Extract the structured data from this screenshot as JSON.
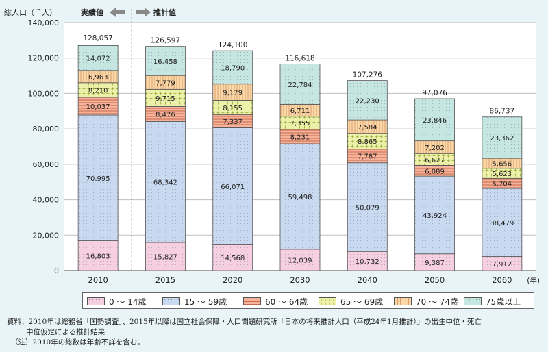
{
  "header": {
    "y_unit_label": "総人口（千人）",
    "actual_label": "実績値",
    "projected_label": "推計値"
  },
  "chart_data": {
    "type": "bar",
    "stacked": true,
    "categories": [
      "2010",
      "2015",
      "2020",
      "2030",
      "2040",
      "2050",
      "2060"
    ],
    "x_unit": "(年)",
    "ylabel": "総人口（千人）",
    "ylim": [
      0,
      140000
    ],
    "yticks": [
      "0",
      "20,000",
      "40,000",
      "60,000",
      "80,000",
      "100,000",
      "120,000",
      "140,000"
    ],
    "ytick_values": [
      0,
      20000,
      40000,
      60000,
      80000,
      100000,
      120000,
      140000
    ],
    "totals": [
      128057,
      126597,
      124100,
      116618,
      107276,
      97076,
      86737
    ],
    "totals_labels": [
      "128,057",
      "126,597",
      "124,100",
      "116,618",
      "107,276",
      "97,076",
      "86,737"
    ],
    "series": [
      {
        "name": "0 ～ 14歳",
        "color": "#f6cfe0",
        "values": [
          16803,
          15827,
          14568,
          12039,
          10732,
          9387,
          7912
        ]
      },
      {
        "name": "15 ～ 59歳",
        "color": "#c9d9f0",
        "values": [
          70995,
          68342,
          66071,
          59498,
          50079,
          43924,
          38479
        ]
      },
      {
        "name": "60 ～ 64歳",
        "color": "#f6b29a",
        "values": [
          10037,
          8476,
          7337,
          8231,
          7787,
          6089,
          5704
        ]
      },
      {
        "name": "65 ～ 69歳",
        "color": "#ecf0a8",
        "values": [
          8210,
          9715,
          8155,
          7355,
          8865,
          6627,
          5623
        ]
      },
      {
        "name": "70 ～ 74歳",
        "color": "#fbd7a8",
        "values": [
          6963,
          7779,
          9179,
          6711,
          7584,
          7202,
          5656
        ]
      },
      {
        "name": "75歳以上",
        "color": "#c5e6e1",
        "values": [
          14072,
          16458,
          18790,
          22784,
          22230,
          23846,
          23362
        ]
      }
    ],
    "value_labels": [
      [
        "16,803",
        "15,827",
        "14,568",
        "12,039",
        "10,732",
        "9,387",
        "7,912"
      ],
      [
        "70,995",
        "68,342",
        "66,071",
        "59,498",
        "50,079",
        "43,924",
        "38,479"
      ],
      [
        "10,037",
        "8,476",
        "7,337",
        "8,231",
        "7,787",
        "6,089",
        "5,704"
      ],
      [
        "8,210",
        "9,715",
        "8,155",
        "7,355",
        "8,865",
        "6,627",
        "5,623"
      ],
      [
        "6,963",
        "7,779",
        "9,179",
        "6,711",
        "7,584",
        "7,202",
        "5,656"
      ],
      [
        "14,072",
        "16,458",
        "18,790",
        "22,784",
        "22,230",
        "23,846",
        "23,362"
      ]
    ],
    "grid": true,
    "legend_position": "bottom"
  },
  "notes": {
    "source": "資料：2010年は総務省「国勢調査」、2015年以降は国立社会保障・人口問題研究所「日本の将来推計人口（平成24年1月推計）」の出生中位・死亡",
    "source_cont": "中位仮定による推計結果",
    "note": "（注）2010年の総数は年齢不詳を含む。"
  }
}
